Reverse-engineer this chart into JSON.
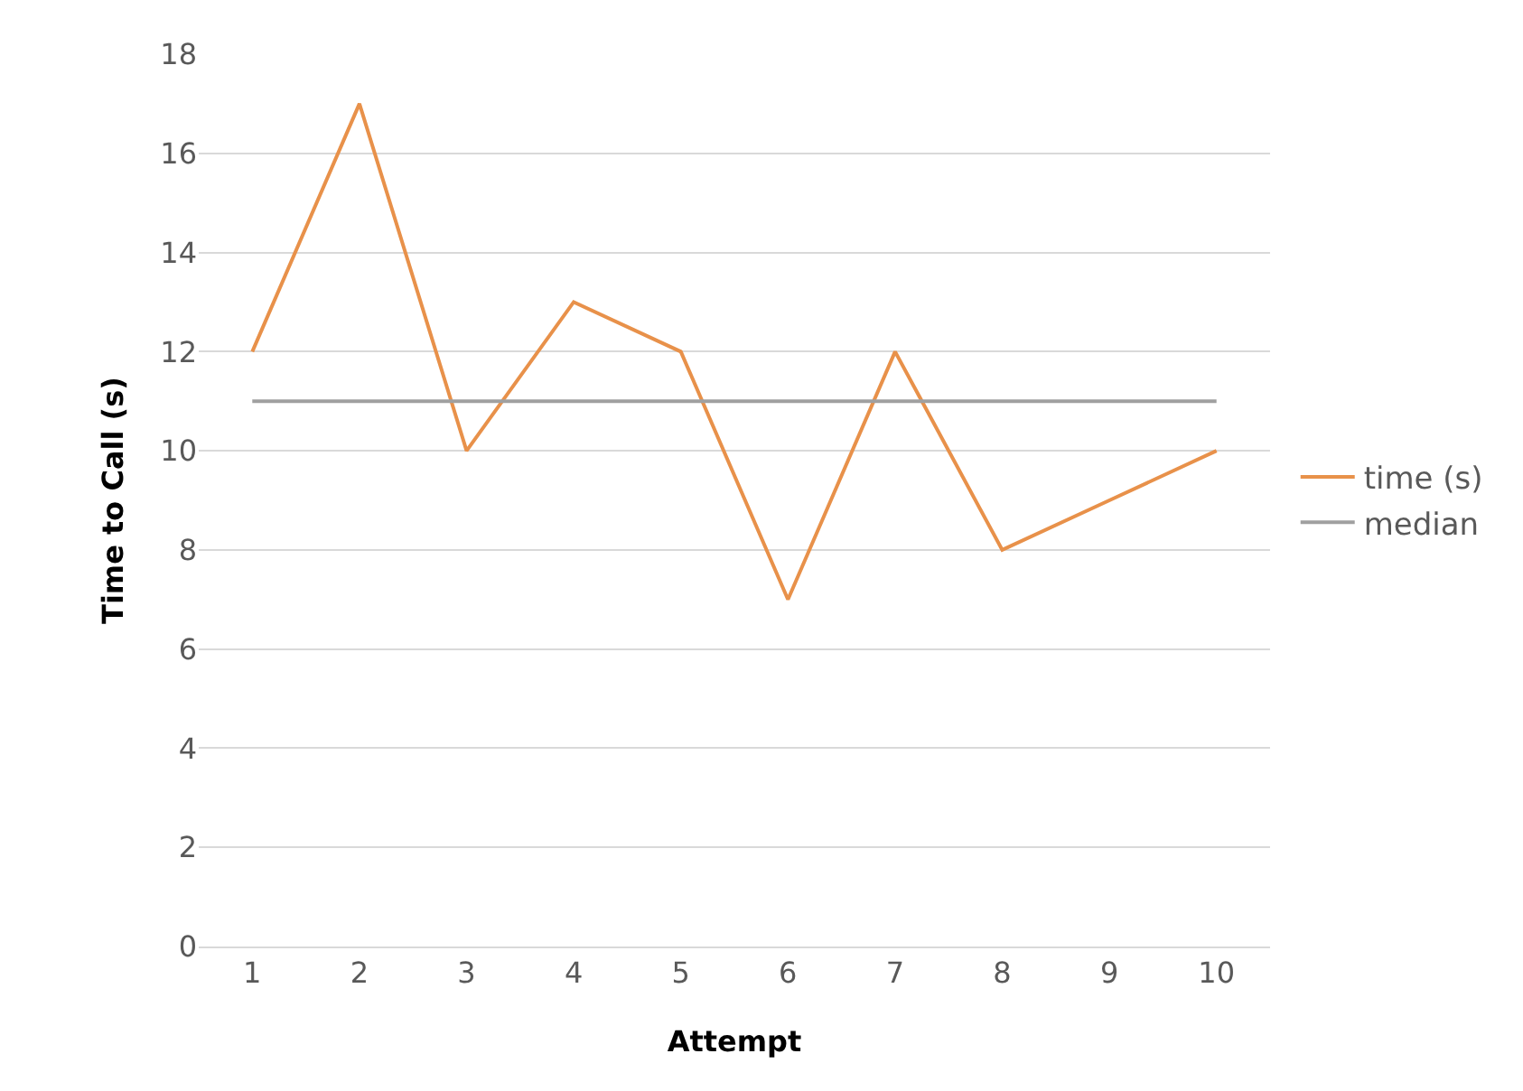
{
  "chart_data": {
    "type": "line",
    "xlabel": "Attempt",
    "ylabel": "Time to Call (s)",
    "categories": [
      "1",
      "2",
      "3",
      "4",
      "5",
      "6",
      "7",
      "8",
      "9",
      "10"
    ],
    "series": [
      {
        "name": "time (s)",
        "color": "#e8914a",
        "values": [
          12,
          17,
          10,
          13,
          12,
          7,
          12,
          8,
          9,
          10
        ]
      },
      {
        "name": "median",
        "color": "#a0a0a0",
        "values": [
          11,
          11,
          11,
          11,
          11,
          11,
          11,
          11,
          11,
          11
        ]
      }
    ],
    "ylim": [
      0,
      18
    ],
    "yticks": [
      0,
      2,
      4,
      6,
      8,
      10,
      12,
      14,
      16,
      18
    ],
    "grid": "y",
    "legend": "right",
    "line_style": "solid"
  }
}
